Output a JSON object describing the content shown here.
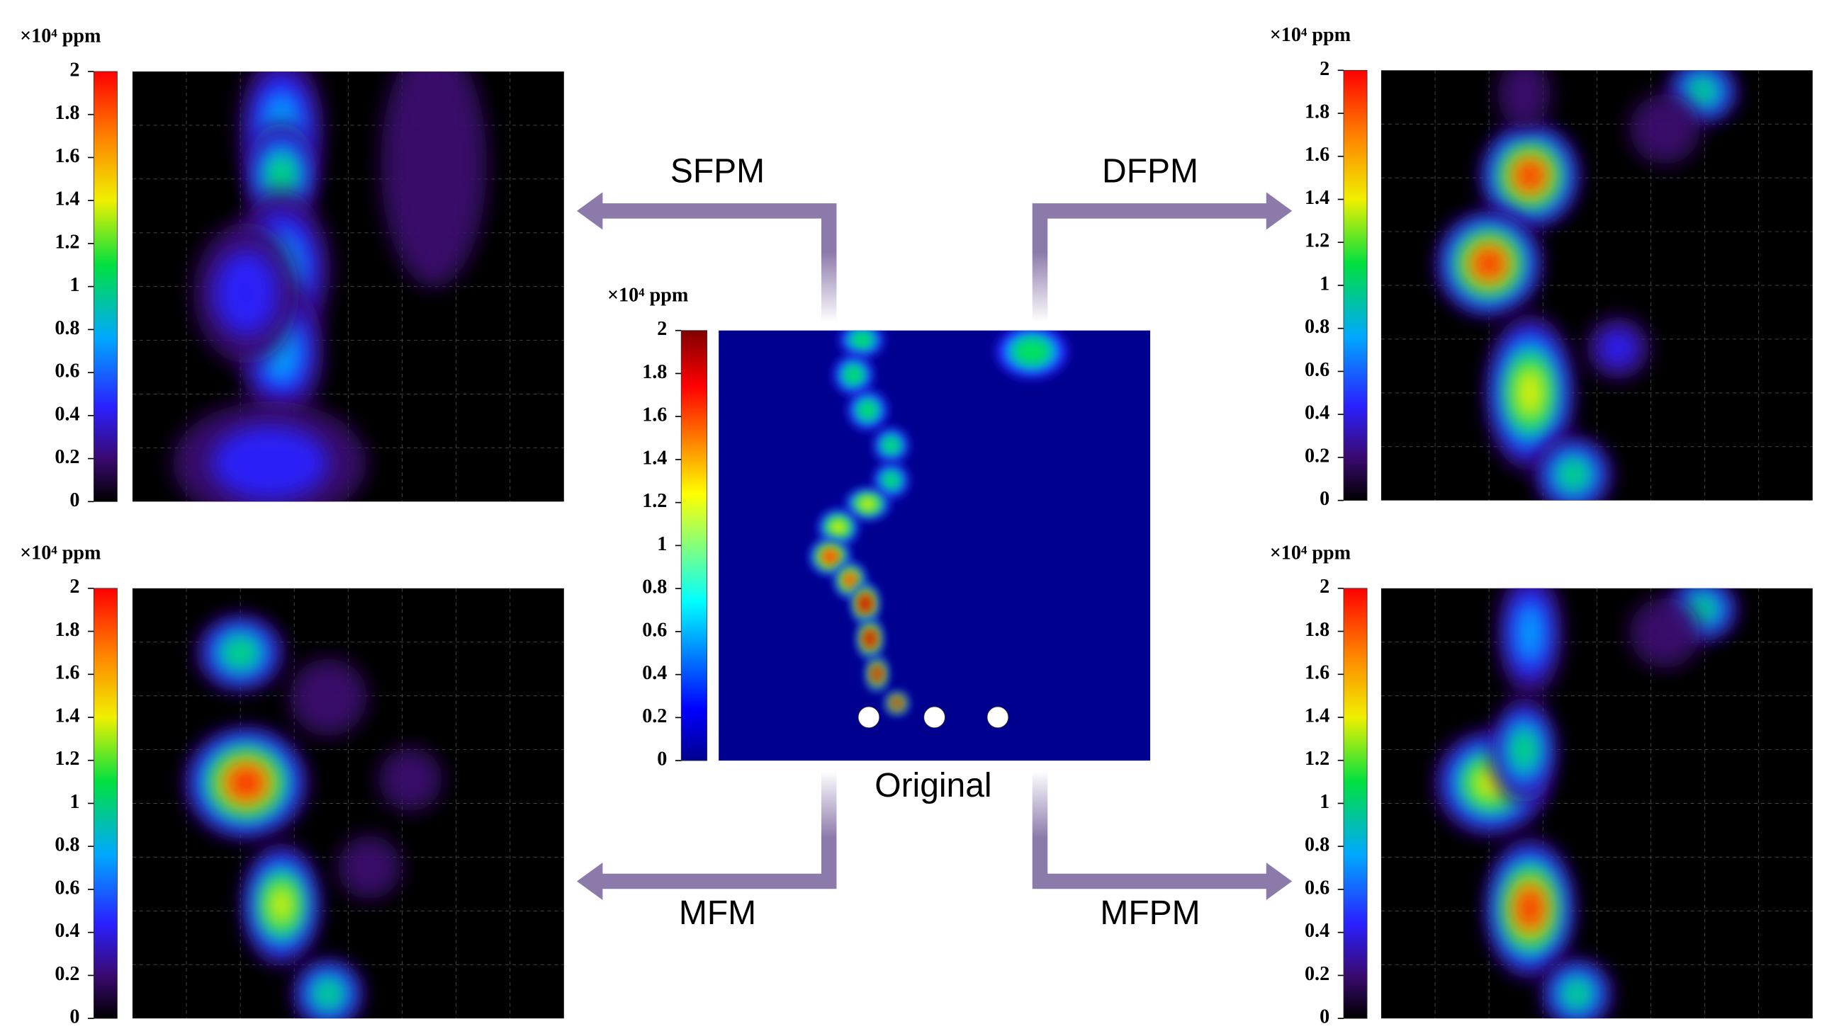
{
  "panels": [
    {
      "title": "SFPM"
    },
    {
      "title": "DFPM"
    },
    {
      "title": "MFM"
    },
    {
      "title": "MFPM"
    },
    {
      "title": "Original"
    }
  ],
  "colorbar": {
    "unit": "×10⁴ ppm",
    "ticks": [
      0,
      0.2,
      0.4,
      0.6,
      0.8,
      1,
      1.2,
      1.4,
      1.6,
      1.8,
      2
    ]
  }
}
